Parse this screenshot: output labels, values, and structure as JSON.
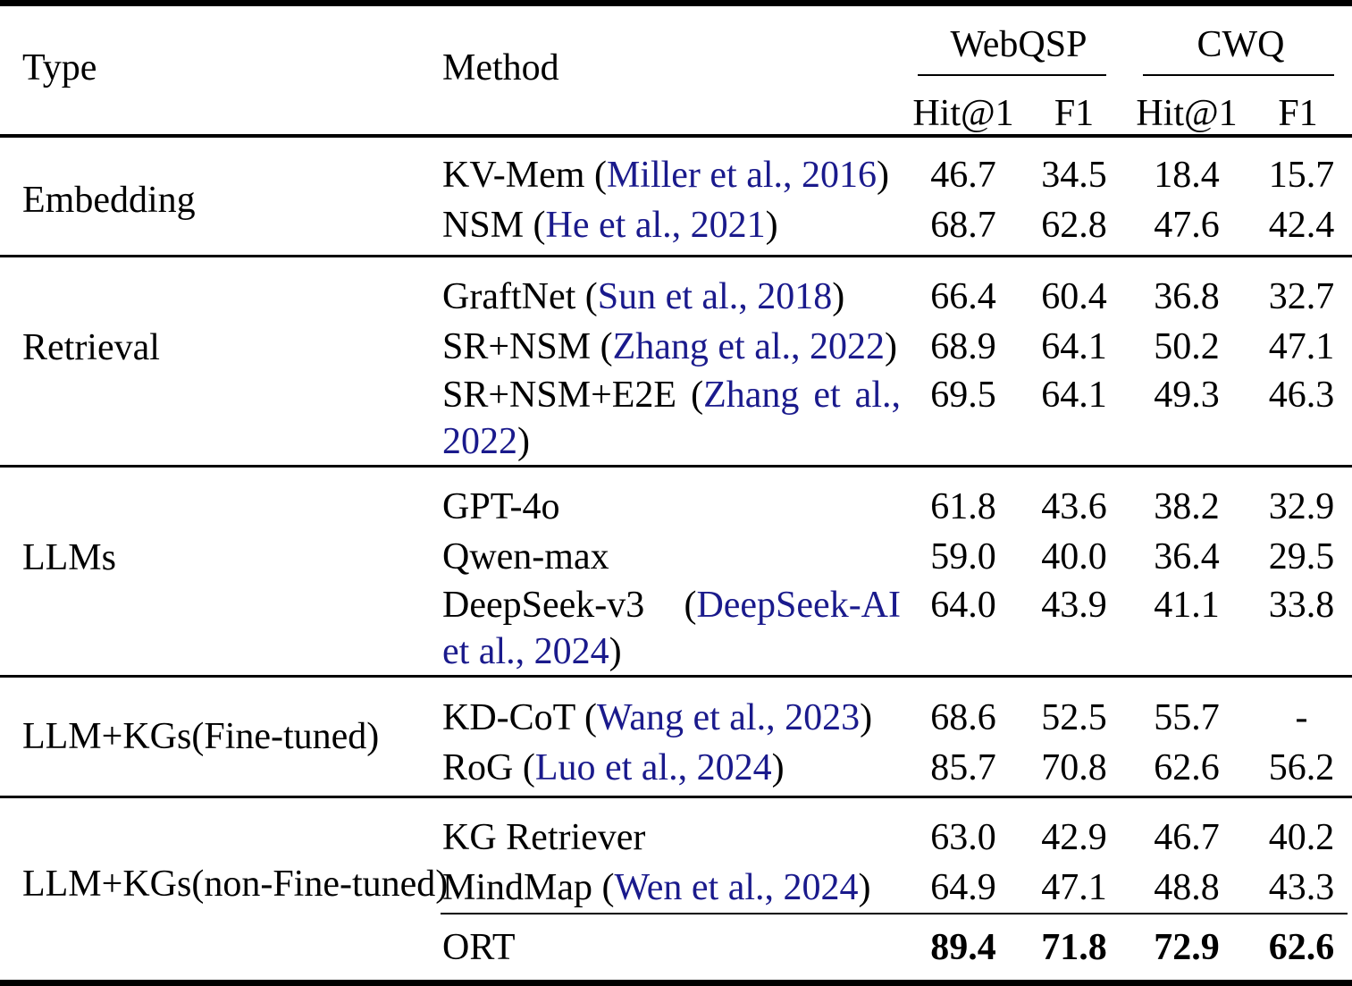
{
  "table": {
    "headers": {
      "type": "Type",
      "method": "Method",
      "group1": "WebQSP",
      "group2": "CWQ",
      "sub": [
        "Hit@1",
        "F1",
        "Hit@1",
        "F1"
      ]
    },
    "colors": {
      "citation_blue": "#1a1a8c",
      "text": "#000000",
      "background": "#ffffff"
    },
    "sections": [
      {
        "type_label": "Embedding",
        "rows": [
          {
            "method_pre": "KV-Mem (",
            "method_cite": "Miller et al., 2016",
            "method_post": ")",
            "values": [
              "46.7",
              "34.5",
              "18.4",
              "15.7"
            ]
          },
          {
            "method_pre": "NSM (",
            "method_cite": "He et al., 2021",
            "method_post": ")",
            "values": [
              "68.7",
              "62.8",
              "47.6",
              "42.4"
            ]
          }
        ]
      },
      {
        "type_label": "Retrieval",
        "rows": [
          {
            "method_pre": "GraftNet (",
            "method_cite": "Sun et al., 2018",
            "method_post": ")",
            "values": [
              "66.4",
              "60.4",
              "36.8",
              "32.7"
            ]
          },
          {
            "method_pre": "SR+NSM (",
            "method_cite": "Zhang et al., 2022",
            "method_post": ")",
            "values": [
              "68.9",
              "64.1",
              "50.2",
              "47.1"
            ]
          },
          {
            "l1_pre": "SR+NSM+E2E (",
            "l1_cite": "Zhang et al.,",
            "l2_cite": "2022",
            "l2_post": ")",
            "values": [
              "69.5",
              "64.1",
              "49.3",
              "46.3"
            ]
          }
        ]
      },
      {
        "type_label": "LLMs",
        "rows": [
          {
            "method": "GPT-4o",
            "values": [
              "61.8",
              "43.6",
              "38.2",
              "32.9"
            ]
          },
          {
            "method": "Qwen-max",
            "values": [
              "59.0",
              "40.0",
              "36.4",
              "29.5"
            ]
          },
          {
            "l1_pre": "DeepSeek-v3 (",
            "l1_cite": "DeepSeek-AI",
            "l2_cite": "et al., 2024",
            "l2_post": ")",
            "values": [
              "64.0",
              "43.9",
              "41.1",
              "33.8"
            ]
          }
        ]
      },
      {
        "type_label": "LLM+KGs(Fine-tuned)",
        "rows": [
          {
            "method_pre": "KD-CoT (",
            "method_cite": "Wang et al., 2023",
            "method_post": ")",
            "values": [
              "68.6",
              "52.5",
              "55.7",
              "-"
            ]
          },
          {
            "method_pre": "RoG (",
            "method_cite": "Luo et al., 2024",
            "method_post": ")",
            "values": [
              "85.7",
              "70.8",
              "62.6",
              "56.2"
            ]
          }
        ]
      },
      {
        "type_label": "LLM+KGs(non-Fine-tuned)",
        "rows": [
          {
            "method": "KG Retriever",
            "values": [
              "63.0",
              "42.9",
              "46.7",
              "40.2"
            ]
          },
          {
            "method_pre": "MindMap (",
            "method_cite": "Wen et al., 2024",
            "method_post": ")",
            "values": [
              "64.9",
              "47.1",
              "48.8",
              "43.3"
            ]
          },
          {
            "method": "ORT",
            "values": [
              "89.4",
              "71.8",
              "72.9",
              "62.6"
            ]
          }
        ]
      }
    ]
  }
}
